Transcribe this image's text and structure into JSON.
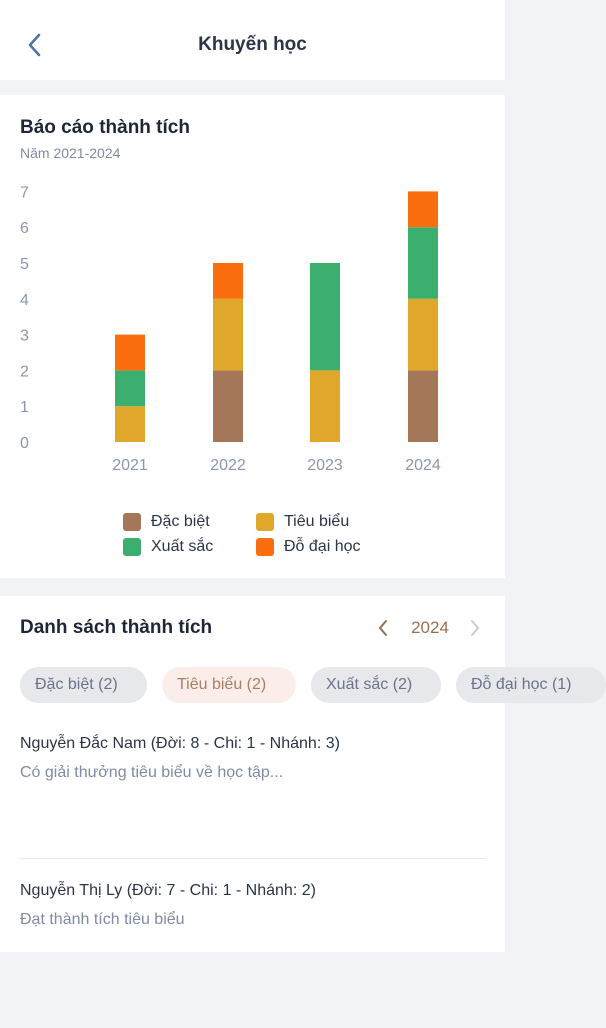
{
  "header": {
    "title": "Khuyến học"
  },
  "report": {
    "title": "Báo cáo thành tích",
    "subtitle": "Năm 2021-2024"
  },
  "chart_data": {
    "type": "bar",
    "stacked": true,
    "categories": [
      "2021",
      "2022",
      "2023",
      "2024"
    ],
    "series": [
      {
        "name": "Đặc biệt",
        "color": "#a57759",
        "values": [
          0,
          2,
          0,
          2
        ]
      },
      {
        "name": "Tiêu biểu",
        "color": "#e0a82a",
        "values": [
          1,
          2,
          2,
          2
        ]
      },
      {
        "name": "Xuất sắc",
        "color": "#3caf6e",
        "values": [
          1,
          0,
          3,
          2
        ]
      },
      {
        "name": "Đỗ đại học",
        "color": "#fb6e10",
        "values": [
          1,
          1,
          0,
          1
        ]
      }
    ],
    "ylim": [
      0,
      7
    ],
    "yticks": [
      "0",
      "1",
      "2",
      "3",
      "4",
      "5",
      "6",
      "7"
    ],
    "legend_position": "bottom",
    "grid": false
  },
  "list": {
    "title": "Danh sách thành tích",
    "year": "2024",
    "chips": [
      {
        "label": "Đặc biệt (2)",
        "active": false
      },
      {
        "label": "Tiêu biểu (2)",
        "active": true
      },
      {
        "label": "Xuất sắc (2)",
        "active": false
      },
      {
        "label": "Đỗ đại học (1)",
        "active": false
      }
    ],
    "entries": [
      {
        "name": "Nguyễn Đắc Nam (Đời: 8 - Chi: 1 - Nhánh: 3)",
        "desc": "Có giải thưởng tiêu biểu về học tập..."
      },
      {
        "name": "Nguyễn Thị Ly (Đời: 7 - Chi: 1 - Nhánh: 2)",
        "desc": "Đạt thành tích tiêu biểu"
      }
    ]
  }
}
